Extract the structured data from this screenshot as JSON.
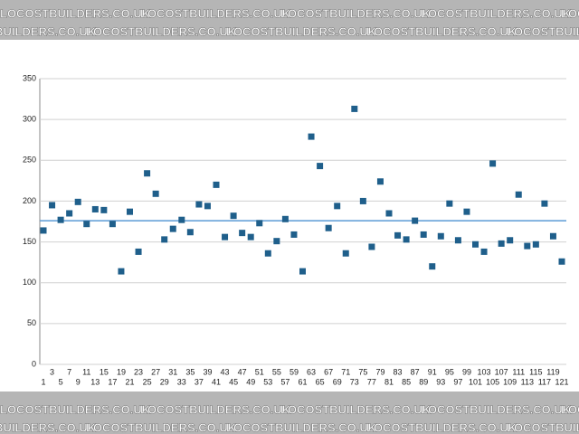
{
  "watermark": "LOCOSTBUILDERS.CO.UK",
  "chart_data": {
    "type": "scatter",
    "color": "#1f5f8b",
    "reference_line": 176,
    "reference_color": "#5b9bd5",
    "categories": [
      1,
      3,
      5,
      7,
      9,
      11,
      13,
      15,
      17,
      19,
      21,
      23,
      25,
      27,
      29,
      31,
      33,
      35,
      37,
      39,
      41,
      43,
      45,
      47,
      49,
      51,
      53,
      55,
      57,
      59,
      61,
      63,
      65,
      67,
      69,
      71,
      73,
      75,
      77,
      79,
      81,
      83,
      85,
      87,
      89,
      91,
      93,
      95,
      97,
      99,
      101,
      103,
      105,
      107,
      109,
      111,
      113,
      115,
      117,
      119,
      121
    ],
    "values": [
      164,
      195,
      177,
      185,
      199,
      172,
      190,
      189,
      172,
      114,
      187,
      138,
      234,
      209,
      153,
      166,
      177,
      162,
      196,
      194,
      220,
      156,
      182,
      161,
      156,
      173,
      136,
      151,
      178,
      159,
      114,
      279,
      243,
      167,
      194,
      136,
      313,
      200,
      144,
      224,
      185,
      158,
      153,
      176,
      159,
      120,
      157,
      197,
      152,
      187,
      147,
      138,
      246,
      148,
      152,
      208,
      145,
      147,
      197,
      157,
      126
    ],
    "ylim": [
      0,
      350
    ],
    "yticks": [
      0,
      50,
      100,
      150,
      200,
      250,
      300,
      350
    ],
    "grid": true
  }
}
